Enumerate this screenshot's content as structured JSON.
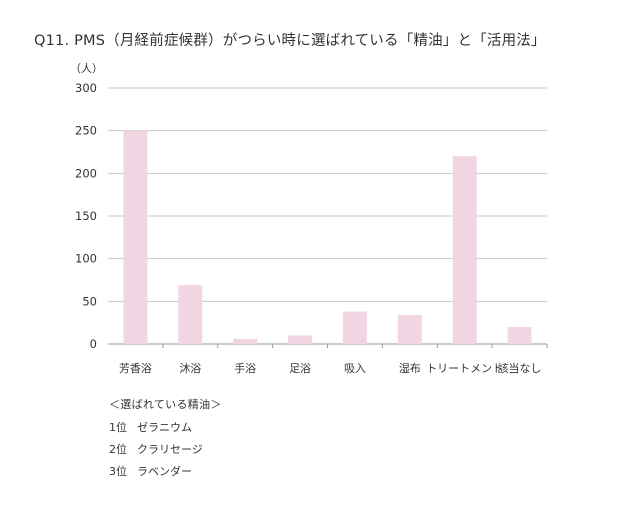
{
  "title": "Q11. PMS（月経前症候群）がつらい時に選ばれている「精油」と「活用法」",
  "chart_data": {
    "type": "bar",
    "unit_label": "（人）",
    "categories": [
      "芳香浴",
      "沐浴",
      "手浴",
      "足浴",
      "吸入",
      "湿布",
      "トリートメント",
      "該当なし"
    ],
    "values": [
      250,
      69,
      6,
      10,
      38,
      34,
      220,
      20
    ],
    "ylim": [
      0,
      300
    ],
    "yticks": [
      0,
      50,
      100,
      150,
      200,
      250,
      300
    ],
    "grid": true,
    "bar_color": "#f2d5e2"
  },
  "notes": {
    "heading": "＜選ばれている精油＞",
    "items": [
      {
        "rank": "1位",
        "name": "ゼラニウム"
      },
      {
        "rank": "2位",
        "name": "クラリセージ"
      },
      {
        "rank": "3位",
        "name": "ラベンダー"
      }
    ]
  }
}
